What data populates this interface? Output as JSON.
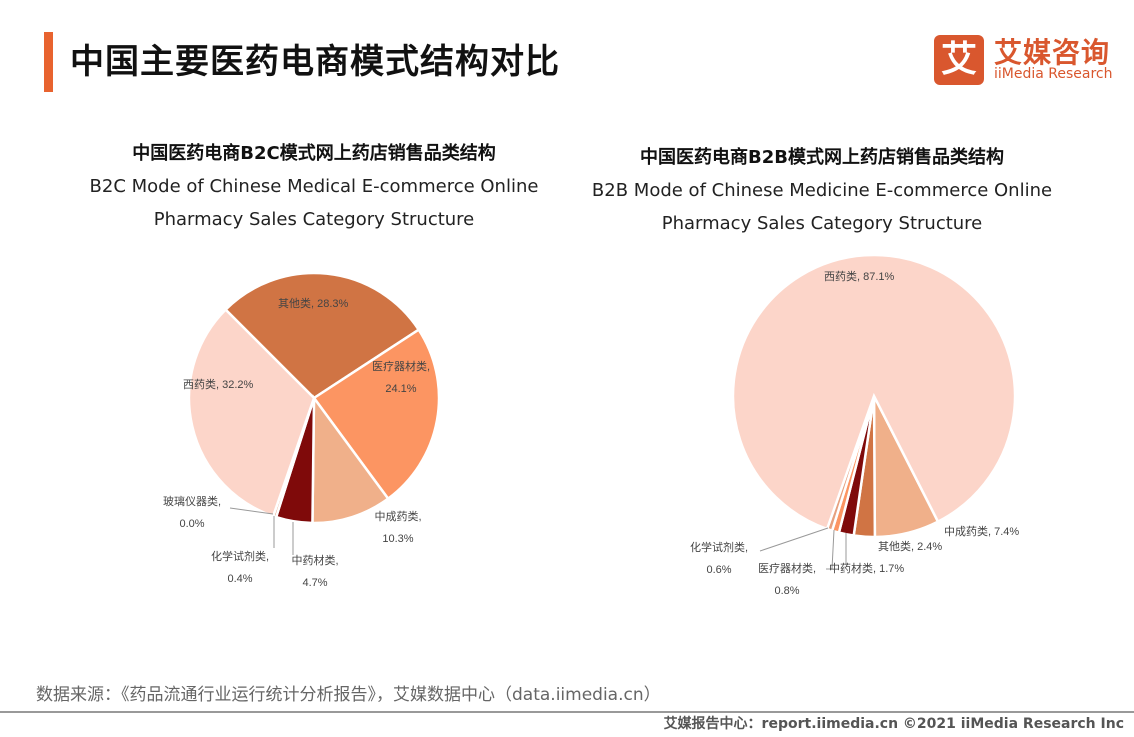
{
  "header": {
    "title": "中国主要医药电商模式结构对比",
    "accent_color": "#e8632f"
  },
  "logo": {
    "mark": "艾",
    "name_cn": "艾媒咨询",
    "name_en": "iiMedia Research",
    "color": "#d9572e"
  },
  "chart_data": [
    {
      "type": "pie",
      "title": "中国医药电商B2C模式网上药店销售品类结构",
      "subtitle": [
        "B2C Mode of Chinese Medical E-commerce Online",
        "Pharmacy Sales Category Structure"
      ],
      "slices": [
        {
          "name": "其他类",
          "value": 28.3,
          "label": "其他类, 28.3%",
          "color": "#d07444"
        },
        {
          "name": "医疗器材类",
          "value": 24.1,
          "label": "医疗器材类,",
          "label2": "24.1%",
          "color": "#fc9562"
        },
        {
          "name": "中成药类",
          "value": 10.3,
          "label": "中成药类,",
          "label2": "10.3%",
          "color": "#f0b08a"
        },
        {
          "name": "中药材类",
          "value": 4.7,
          "label": "中药材类,",
          "label2": "4.7%",
          "color": "#7f0a0a"
        },
        {
          "name": "化学试剂类",
          "value": 0.4,
          "label": "化学试剂类,",
          "label2": "0.4%",
          "color": "#e6a07e"
        },
        {
          "name": "玻璃仪器类",
          "value": 0.0,
          "label": "玻璃仪器类,",
          "label2": "0.0%",
          "color": "#f5c0a8"
        },
        {
          "name": "西药类",
          "value": 32.2,
          "label": "西药类, 32.2%",
          "color": "#fcd5c9"
        }
      ]
    },
    {
      "type": "pie",
      "title": "中国医药电商B2B模式网上药店销售品类结构",
      "subtitle": [
        "B2B Mode of Chinese Medicine E-commerce Online",
        "Pharmacy Sales Category Structure"
      ],
      "slices": [
        {
          "name": "中成药类",
          "value": 7.4,
          "label": "中成药类, 7.4%",
          "color": "#f0b08a"
        },
        {
          "name": "其他类",
          "value": 2.4,
          "label": "其他类, 2.4%",
          "color": "#d07444"
        },
        {
          "name": "中药材类",
          "value": 1.7,
          "label": "中药材类, 1.7%",
          "color": "#7f0a0a"
        },
        {
          "name": "医疗器材类",
          "value": 0.8,
          "label": "医疗器材类,",
          "label2": "0.8%",
          "color": "#fc9562"
        },
        {
          "name": "化学试剂类",
          "value": 0.6,
          "label": "化学试剂类,",
          "label2": "0.6%",
          "color": "#e6a07e"
        },
        {
          "name": "西药类",
          "value": 87.1,
          "label": "西药类, 87.1%",
          "color": "#fcd5c9"
        }
      ]
    }
  ],
  "source": "数据来源：《药品流通行业运行统计分析报告》，艾媒数据中心（data.iimedia.cn）",
  "footer": "艾媒报告中心：report.iimedia.cn   ©2021  iiMedia Research  Inc"
}
